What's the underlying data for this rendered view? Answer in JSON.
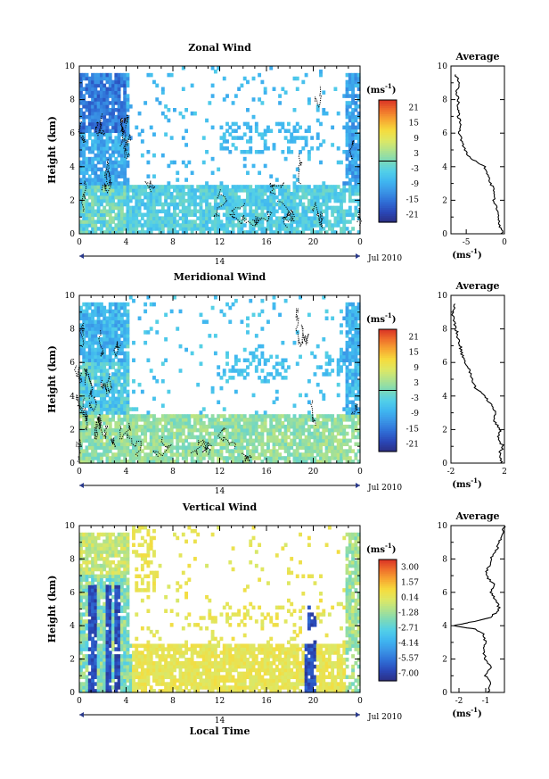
{
  "xlabel": "Local Time",
  "date_day": "14",
  "date_month": "Jul 2010",
  "ylabel": "Height (km)",
  "unit_label": "(ms",
  "unit_exp": "-1",
  "avg_unit_label": "(ms",
  "avg_unit_exp": "-1",
  "colors": {
    "colorbar": [
      "#2b2f84",
      "#2a48b8",
      "#2f6fd6",
      "#3a95e6",
      "#3fb6f0",
      "#52cfe8",
      "#7bd9b9",
      "#aee28e",
      "#dde865",
      "#f5dc3e",
      "#f7a932",
      "#ef6f2b",
      "#d83225"
    ]
  },
  "chart_data": [
    {
      "type": "heatmap",
      "title": "Zonal Wind",
      "x_ticks": [
        "0",
        "4",
        "8",
        "12",
        "16",
        "20",
        "0"
      ],
      "y_ticks": [
        "0",
        "2",
        "4",
        "6",
        "8",
        "10"
      ],
      "xlim": [
        0,
        24
      ],
      "ylim": [
        0,
        10
      ],
      "colorbar_ticks": [
        "21",
        "15",
        "9",
        "3",
        "-3",
        "-9",
        "-15",
        "-21"
      ],
      "colorbar_range": [
        -24,
        24
      ],
      "average": {
        "title": "Average",
        "x_ticks": [
          "-5",
          "0"
        ],
        "y_ticks": [
          "0",
          "2",
          "4",
          "6",
          "8",
          "10"
        ],
        "xlim": [
          -7,
          0
        ],
        "profile": [
          [
            0,
            -0.3
          ],
          [
            0.5,
            -0.6
          ],
          [
            1,
            -0.8
          ],
          [
            1.5,
            -1.0
          ],
          [
            2,
            -1.4
          ],
          [
            2.5,
            -1.2
          ],
          [
            3,
            -1.8
          ],
          [
            3.5,
            -2.2
          ],
          [
            4,
            -2.6
          ],
          [
            4.5,
            -4.5
          ],
          [
            5,
            -5.2
          ],
          [
            5.5,
            -5.6
          ],
          [
            6,
            -5.9
          ],
          [
            6.5,
            -5.8
          ],
          [
            7,
            -6.0
          ],
          [
            7.5,
            -6.1
          ],
          [
            8,
            -6.0
          ],
          [
            8.5,
            -6.3
          ],
          [
            9,
            -5.8
          ],
          [
            9.5,
            -6.4
          ]
        ]
      }
    },
    {
      "type": "heatmap",
      "title": "Meridional Wind",
      "x_ticks": [
        "0",
        "4",
        "8",
        "12",
        "16",
        "20",
        "0"
      ],
      "y_ticks": [
        "0",
        "2",
        "4",
        "6",
        "8",
        "10"
      ],
      "xlim": [
        0,
        24
      ],
      "ylim": [
        0,
        10
      ],
      "colorbar_ticks": [
        "21",
        "15",
        "9",
        "3",
        "-3",
        "-9",
        "-15",
        "-21"
      ],
      "colorbar_range": [
        -24,
        24
      ],
      "average": {
        "title": "Average",
        "x_ticks": [
          "-2",
          "2"
        ],
        "y_ticks": [
          "0",
          "2",
          "4",
          "6",
          "8",
          "10"
        ],
        "xlim": [
          -2,
          2
        ],
        "profile": [
          [
            0,
            1.8
          ],
          [
            0.5,
            1.6
          ],
          [
            1,
            1.9
          ],
          [
            1.5,
            1.5
          ],
          [
            2,
            1.7
          ],
          [
            2.5,
            1.2
          ],
          [
            3,
            1.4
          ],
          [
            3.5,
            1.0
          ],
          [
            4,
            0.5
          ],
          [
            4.5,
            -0.2
          ],
          [
            5,
            -0.4
          ],
          [
            5.5,
            -0.6
          ],
          [
            6,
            -0.9
          ],
          [
            6.5,
            -1.2
          ],
          [
            7,
            -1.3
          ],
          [
            7.5,
            -1.5
          ],
          [
            8,
            -1.6
          ],
          [
            8.5,
            -1.8
          ],
          [
            9,
            -1.9
          ],
          [
            9.5,
            -1.7
          ]
        ]
      }
    },
    {
      "type": "heatmap",
      "title": "Vertical Wind",
      "x_ticks": [
        "0",
        "4",
        "8",
        "12",
        "16",
        "20",
        "0"
      ],
      "y_ticks": [
        "0",
        "2",
        "4",
        "6",
        "8",
        "10"
      ],
      "xlim": [
        0,
        24
      ],
      "ylim": [
        0,
        10
      ],
      "colorbar_ticks": [
        "3.00",
        "1.57",
        "0.14",
        "-1.28",
        "-2.71",
        "-4.14",
        "-5.57",
        "-7.00"
      ],
      "colorbar_range": [
        -7.5,
        3.5
      ],
      "average": {
        "title": "Average",
        "x_ticks": [
          "-2",
          "-1"
        ],
        "y_ticks": [
          "0",
          "2",
          "4",
          "6",
          "8",
          "10"
        ],
        "xlim": [
          -2.3,
          -0.3
        ],
        "profile": [
          [
            0,
            -0.9
          ],
          [
            0.5,
            -0.8
          ],
          [
            1,
            -1.0
          ],
          [
            1.5,
            -0.8
          ],
          [
            2,
            -1.0
          ],
          [
            2.5,
            -1.1
          ],
          [
            3,
            -1.0
          ],
          [
            3.5,
            -1.1
          ],
          [
            3.8,
            -1.4
          ],
          [
            4,
            -2.2
          ],
          [
            4.2,
            -1.6
          ],
          [
            4.5,
            -0.8
          ],
          [
            5,
            -0.5
          ],
          [
            5.5,
            -0.6
          ],
          [
            6,
            -0.8
          ],
          [
            6.5,
            -0.7
          ],
          [
            7,
            -1.0
          ],
          [
            7.5,
            -0.9
          ],
          [
            8,
            -0.8
          ],
          [
            8.5,
            -0.6
          ],
          [
            9,
            -0.5
          ],
          [
            9.5,
            -0.4
          ],
          [
            10,
            -0.3
          ]
        ]
      }
    }
  ]
}
